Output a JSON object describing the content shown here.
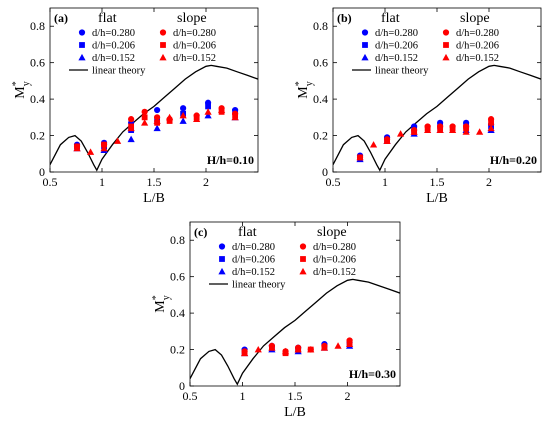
{
  "chart_data": [
    {
      "type": "scatter",
      "panel_label": "(a)",
      "annotation": "H/h=0.10",
      "xlabel": "L/B",
      "ylabel_main": "M",
      "ylabel_sup": "*",
      "ylabel_sub": "y",
      "xlim": [
        0.5,
        2.5
      ],
      "ylim": [
        0,
        0.9
      ],
      "xticks": [
        "0.5",
        "1",
        "1.5",
        "2"
      ],
      "yticks": [
        "0",
        "0.2",
        "0.4",
        "0.6",
        "0.8"
      ],
      "legend_headers": [
        "flat",
        "slope"
      ],
      "legend_placement": "top-left",
      "series": [
        {
          "name": "d/h=0.280",
          "group": "flat",
          "marker": "circle",
          "color": "#0000ff",
          "x": [
            0.76,
            1.02,
            1.28,
            1.53,
            1.78,
            2.02,
            2.28
          ],
          "y": [
            0.15,
            0.16,
            0.27,
            0.34,
            0.35,
            0.38,
            0.34
          ]
        },
        {
          "name": "d/h=0.206",
          "group": "flat",
          "marker": "square",
          "color": "#0000ff",
          "x": [
            0.76,
            1.02,
            1.28,
            1.53,
            1.78,
            2.02,
            2.28
          ],
          "y": [
            0.14,
            0.14,
            0.23,
            0.29,
            0.32,
            0.36,
            0.33
          ]
        },
        {
          "name": "d/h=0.152",
          "group": "flat",
          "marker": "triangle",
          "color": "#0000ff",
          "x": [
            0.76,
            1.02,
            1.28,
            1.53,
            1.78,
            2.02,
            2.28
          ],
          "y": [
            0.13,
            0.12,
            0.18,
            0.24,
            0.28,
            0.31,
            0.3
          ]
        },
        {
          "name": "d/h=0.280",
          "group": "slope",
          "marker": "circle",
          "color": "#ff0000",
          "x": [
            0.76,
            1.02,
            1.28,
            1.41,
            1.53,
            1.65,
            1.91,
            2.15,
            2.28
          ],
          "y": [
            0.14,
            0.15,
            0.29,
            0.33,
            0.3,
            0.29,
            0.31,
            0.35,
            0.32
          ]
        },
        {
          "name": "d/h=0.206",
          "group": "slope",
          "marker": "square",
          "color": "#ff0000",
          "x": [
            0.76,
            1.02,
            1.28,
            1.41,
            1.53,
            1.65,
            1.91,
            2.15,
            2.28
          ],
          "y": [
            0.14,
            0.15,
            0.25,
            0.3,
            0.27,
            0.28,
            0.3,
            0.33,
            0.31
          ]
        },
        {
          "name": "d/h=0.152",
          "group": "slope",
          "marker": "triangle",
          "color": "#ff0000",
          "x": [
            0.76,
            0.89,
            1.02,
            1.15,
            1.28,
            1.41,
            1.53,
            1.65,
            1.78,
            1.91,
            2.02,
            2.15,
            2.28
          ],
          "y": [
            0.13,
            0.11,
            0.13,
            0.17,
            0.24,
            0.27,
            0.28,
            0.3,
            0.31,
            0.29,
            0.33,
            0.34,
            0.3
          ]
        }
      ],
      "linear_theory": {
        "name": "linear theory",
        "color": "#000000",
        "x": [
          0.5,
          0.6,
          0.68,
          0.74,
          0.8,
          0.86,
          0.92,
          0.95,
          1.0,
          1.1,
          1.2,
          1.3,
          1.4,
          1.5,
          1.6,
          1.7,
          1.8,
          1.9,
          2.0,
          2.05,
          2.1,
          2.2,
          2.3,
          2.4,
          2.5
        ],
        "y": [
          0.04,
          0.15,
          0.19,
          0.2,
          0.17,
          0.11,
          0.04,
          0.01,
          0.07,
          0.15,
          0.22,
          0.27,
          0.32,
          0.36,
          0.41,
          0.46,
          0.51,
          0.55,
          0.58,
          0.585,
          0.58,
          0.57,
          0.55,
          0.53,
          0.51
        ]
      }
    },
    {
      "type": "scatter",
      "panel_label": "(b)",
      "annotation": "H/h=0.20",
      "xlabel": "L/B",
      "ylabel_main": "M",
      "ylabel_sup": "*",
      "ylabel_sub": "y",
      "xlim": [
        0.5,
        2.5
      ],
      "ylim": [
        0,
        0.9
      ],
      "xticks": [
        "0.5",
        "1",
        "1.5",
        "2"
      ],
      "yticks": [
        "0",
        "0.2",
        "0.4",
        "0.6",
        "0.8"
      ],
      "legend_headers": [
        "flat",
        "slope"
      ],
      "legend_placement": "top-left",
      "series": [
        {
          "name": "d/h=0.280",
          "group": "flat",
          "marker": "circle",
          "color": "#0000ff",
          "x": [
            0.76,
            1.02,
            1.28,
            1.53,
            1.78,
            2.02
          ],
          "y": [
            0.09,
            0.19,
            0.25,
            0.27,
            0.27,
            0.26
          ]
        },
        {
          "name": "d/h=0.206",
          "group": "flat",
          "marker": "square",
          "color": "#0000ff",
          "x": [
            0.76,
            1.02,
            1.28,
            1.53,
            1.78,
            2.02
          ],
          "y": [
            0.08,
            0.18,
            0.23,
            0.25,
            0.25,
            0.25
          ]
        },
        {
          "name": "d/h=0.152",
          "group": "flat",
          "marker": "triangle",
          "color": "#0000ff",
          "x": [
            0.76,
            1.02,
            1.28,
            1.53,
            1.78,
            2.02
          ],
          "y": [
            0.07,
            0.17,
            0.21,
            0.23,
            0.23,
            0.23
          ]
        },
        {
          "name": "d/h=0.280",
          "group": "slope",
          "marker": "circle",
          "color": "#ff0000",
          "x": [
            0.76,
            1.02,
            1.28,
            1.41,
            1.53,
            1.65,
            1.78,
            2.02
          ],
          "y": [
            0.08,
            0.18,
            0.23,
            0.25,
            0.25,
            0.25,
            0.25,
            0.29
          ]
        },
        {
          "name": "d/h=0.206",
          "group": "slope",
          "marker": "square",
          "color": "#ff0000",
          "x": [
            0.76,
            1.02,
            1.28,
            1.41,
            1.53,
            1.65,
            1.78,
            2.02
          ],
          "y": [
            0.08,
            0.17,
            0.22,
            0.24,
            0.24,
            0.24,
            0.24,
            0.27
          ]
        },
        {
          "name": "d/h=0.152",
          "group": "slope",
          "marker": "triangle",
          "color": "#ff0000",
          "x": [
            0.76,
            0.89,
            1.02,
            1.15,
            1.28,
            1.41,
            1.53,
            1.65,
            1.78,
            1.91,
            2.02
          ],
          "y": [
            0.08,
            0.15,
            0.17,
            0.21,
            0.22,
            0.23,
            0.23,
            0.23,
            0.22,
            0.22,
            0.24
          ]
        }
      ],
      "linear_theory": {
        "name": "linear theory",
        "color": "#000000",
        "x": [
          0.5,
          0.6,
          0.68,
          0.74,
          0.8,
          0.86,
          0.92,
          0.95,
          1.0,
          1.1,
          1.2,
          1.3,
          1.4,
          1.5,
          1.6,
          1.7,
          1.8,
          1.9,
          2.0,
          2.05,
          2.1,
          2.2,
          2.3,
          2.4,
          2.5
        ],
        "y": [
          0.04,
          0.15,
          0.19,
          0.2,
          0.17,
          0.11,
          0.04,
          0.01,
          0.07,
          0.15,
          0.22,
          0.27,
          0.32,
          0.36,
          0.41,
          0.46,
          0.51,
          0.55,
          0.58,
          0.585,
          0.58,
          0.57,
          0.55,
          0.53,
          0.51
        ]
      }
    },
    {
      "type": "scatter",
      "panel_label": "(c)",
      "annotation": "H/h=0.30",
      "xlabel": "L/B",
      "ylabel_main": "M",
      "ylabel_sup": "*",
      "ylabel_sub": "y",
      "xlim": [
        0.5,
        2.5
      ],
      "ylim": [
        0,
        0.9
      ],
      "xticks": [
        "0.5",
        "1",
        "1.5",
        "2"
      ],
      "yticks": [
        "0",
        "0.2",
        "0.4",
        "0.6",
        "0.8"
      ],
      "legend_headers": [
        "flat",
        "slope"
      ],
      "legend_placement": "top-left",
      "series": [
        {
          "name": "d/h=0.280",
          "group": "flat",
          "marker": "circle",
          "color": "#0000ff",
          "x": [
            1.02,
            1.28,
            1.53,
            1.78,
            2.02
          ],
          "y": [
            0.2,
            0.22,
            0.21,
            0.23,
            0.24
          ]
        },
        {
          "name": "d/h=0.206",
          "group": "flat",
          "marker": "square",
          "color": "#0000ff",
          "x": [
            1.02,
            1.28,
            1.53,
            1.78,
            2.02
          ],
          "y": [
            0.19,
            0.21,
            0.2,
            0.22,
            0.23
          ]
        },
        {
          "name": "d/h=0.152",
          "group": "flat",
          "marker": "triangle",
          "color": "#0000ff",
          "x": [
            1.02,
            1.28,
            1.53,
            1.78,
            2.02
          ],
          "y": [
            0.18,
            0.2,
            0.19,
            0.21,
            0.22
          ]
        },
        {
          "name": "d/h=0.280",
          "group": "slope",
          "marker": "circle",
          "color": "#ff0000",
          "x": [
            1.02,
            1.28,
            1.41,
            1.53,
            1.65,
            1.78,
            2.02
          ],
          "y": [
            0.19,
            0.22,
            0.19,
            0.21,
            0.2,
            0.22,
            0.25
          ]
        },
        {
          "name": "d/h=0.206",
          "group": "slope",
          "marker": "square",
          "color": "#ff0000",
          "x": [
            1.02,
            1.28,
            1.41,
            1.53,
            1.65,
            1.78,
            2.02
          ],
          "y": [
            0.18,
            0.21,
            0.18,
            0.2,
            0.2,
            0.21,
            0.24
          ]
        },
        {
          "name": "d/h=0.152",
          "group": "slope",
          "marker": "triangle",
          "color": "#ff0000",
          "x": [
            1.02,
            1.15,
            1.28,
            1.41,
            1.53,
            1.65,
            1.78,
            1.91,
            2.02
          ],
          "y": [
            0.18,
            0.2,
            0.21,
            0.19,
            0.2,
            0.2,
            0.21,
            0.22,
            0.23
          ]
        }
      ],
      "linear_theory": {
        "name": "linear theory",
        "color": "#000000",
        "x": [
          0.5,
          0.6,
          0.68,
          0.74,
          0.8,
          0.86,
          0.92,
          0.95,
          1.0,
          1.1,
          1.2,
          1.3,
          1.4,
          1.5,
          1.6,
          1.7,
          1.8,
          1.9,
          2.0,
          2.05,
          2.1,
          2.2,
          2.3,
          2.4,
          2.5
        ],
        "y": [
          0.04,
          0.15,
          0.19,
          0.2,
          0.17,
          0.11,
          0.04,
          0.01,
          0.07,
          0.15,
          0.22,
          0.27,
          0.32,
          0.36,
          0.41,
          0.46,
          0.51,
          0.55,
          0.58,
          0.585,
          0.58,
          0.57,
          0.55,
          0.53,
          0.51
        ]
      }
    }
  ]
}
